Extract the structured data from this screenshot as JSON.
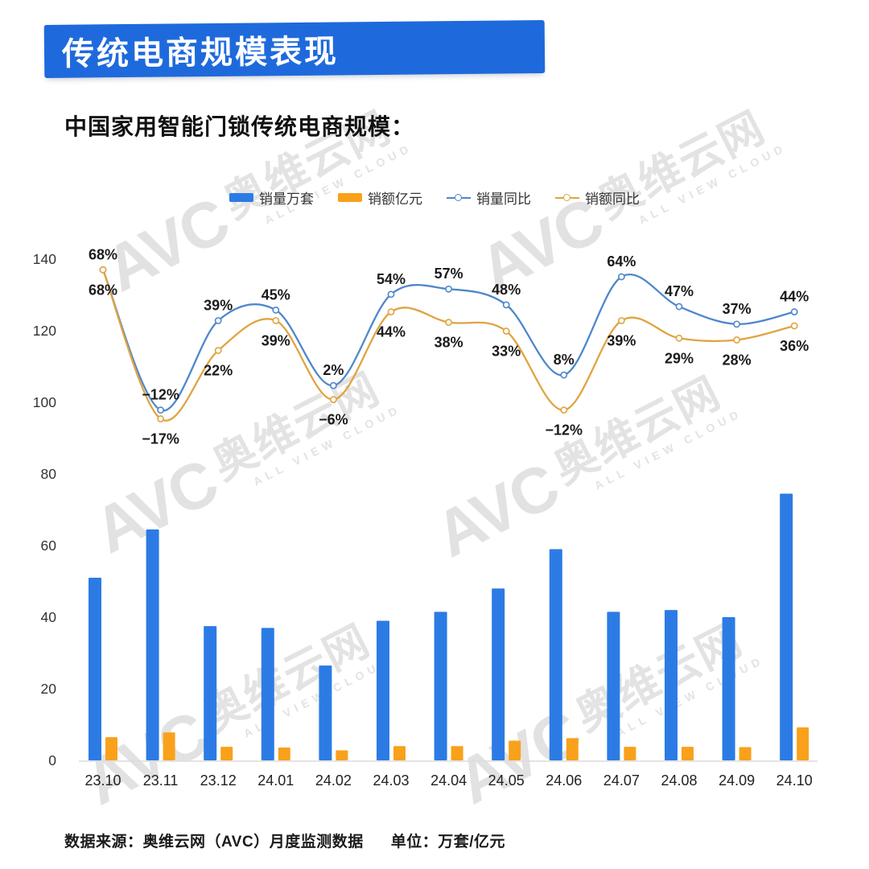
{
  "header": {
    "title": "传统电商规模表现"
  },
  "subtitle": "中国家用智能门锁传统电商规模：",
  "legend": [
    {
      "label": "销量万套",
      "type": "bar",
      "color": "#2C7BE5"
    },
    {
      "label": "销额亿元",
      "type": "bar",
      "color": "#F9A11B"
    },
    {
      "label": "销量同比",
      "type": "line",
      "color": "#4E87CB"
    },
    {
      "label": "销额同比",
      "type": "line",
      "color": "#E0A440"
    }
  ],
  "watermark": {
    "logo": "AVC",
    "cn": "奥维云网",
    "en": "ALL VIEW CLOUD"
  },
  "footer": {
    "source": "数据来源：奥维云网（AVC）月度监测数据",
    "unit": "单位：万套/亿元"
  },
  "chart_data": {
    "type": "bar",
    "subtype": "bar+line combo",
    "categories": [
      "23.10",
      "23.11",
      "23.12",
      "24.01",
      "24.02",
      "24.03",
      "24.04",
      "24.05",
      "24.06",
      "24.07",
      "24.08",
      "24.09",
      "24.10"
    ],
    "y_axis": {
      "ticks": [
        0,
        20,
        40,
        60,
        80,
        100,
        120,
        140
      ],
      "min": 0,
      "max": 140
    },
    "grid": false,
    "legend_position": "top",
    "series": [
      {
        "name": "销量万套",
        "type": "bar",
        "color": "#2C7BE5",
        "unit": "万套",
        "values": [
          51,
          64.5,
          37.5,
          37,
          26.5,
          39,
          41.5,
          48,
          59,
          41.5,
          42,
          40,
          74.5
        ]
      },
      {
        "name": "销额亿元",
        "type": "bar",
        "color": "#F9A11B",
        "unit": "亿元",
        "values": [
          6.5,
          7.8,
          3.8,
          3.6,
          2.8,
          4,
          4,
          5.5,
          6.2,
          3.8,
          3.8,
          3.7,
          9.2
        ]
      },
      {
        "name": "销量同比",
        "type": "line",
        "color": "#4E87CB",
        "unit": "%",
        "values": [
          68,
          -12,
          39,
          45,
          2,
          54,
          57,
          48,
          8,
          64,
          47,
          37,
          44
        ]
      },
      {
        "name": "销额同比",
        "type": "line",
        "color": "#E0A440",
        "unit": "%",
        "values": [
          68,
          -17,
          22,
          39,
          -6,
          44,
          38,
          33,
          -12,
          39,
          29,
          28,
          36
        ]
      }
    ]
  }
}
